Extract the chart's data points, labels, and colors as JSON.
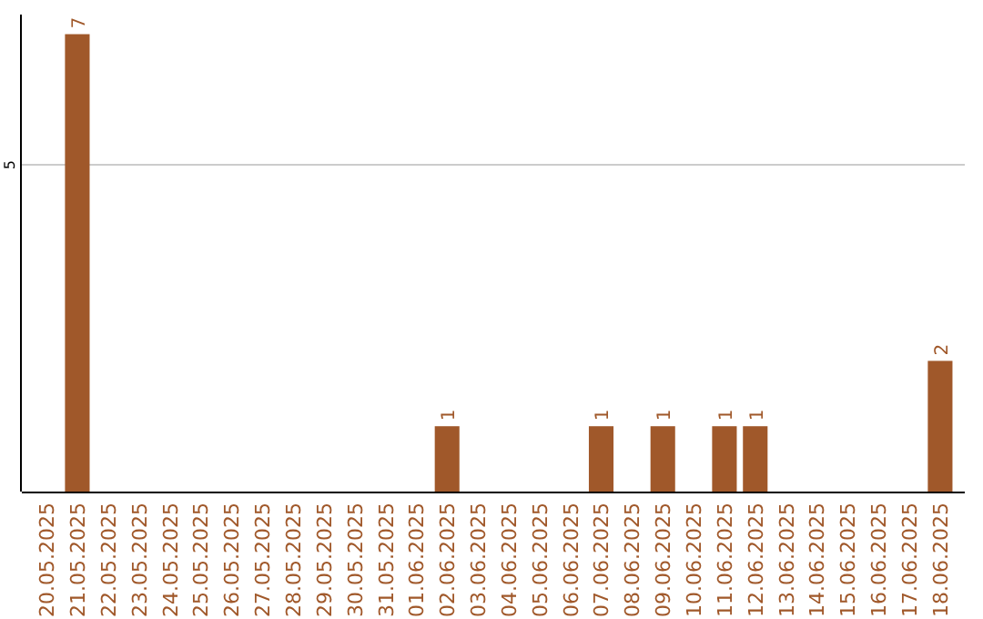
{
  "chart_data": {
    "type": "bar",
    "categories": [
      "20.05.2025",
      "21.05.2025",
      "22.05.2025",
      "23.05.2025",
      "24.05.2025",
      "25.05.2025",
      "26.05.2025",
      "27.05.2025",
      "28.05.2025",
      "29.05.2025",
      "30.05.2025",
      "31.05.2025",
      "01.06.2025",
      "02.06.2025",
      "03.06.2025",
      "04.06.2025",
      "05.06.2025",
      "06.06.2025",
      "07.06.2025",
      "08.06.2025",
      "09.06.2025",
      "10.06.2025",
      "11.06.2025",
      "12.06.2025",
      "13.06.2025",
      "14.06.2025",
      "15.06.2025",
      "16.06.2025",
      "17.06.2025",
      "18.06.2025"
    ],
    "values": [
      0,
      7,
      0,
      0,
      0,
      0,
      0,
      0,
      0,
      0,
      0,
      0,
      0,
      1,
      0,
      0,
      0,
      0,
      1,
      0,
      1,
      0,
      1,
      1,
      0,
      0,
      0,
      0,
      0,
      2
    ],
    "value_labels": [
      null,
      "7",
      null,
      null,
      null,
      null,
      null,
      null,
      null,
      null,
      null,
      null,
      null,
      "1",
      null,
      null,
      null,
      null,
      "1",
      null,
      "1",
      null,
      "1",
      "1",
      null,
      null,
      null,
      null,
      null,
      "2"
    ],
    "color": "#a0582a",
    "ylim": [
      0,
      7.3
    ],
    "yticks": [
      5
    ],
    "grid": "y"
  }
}
